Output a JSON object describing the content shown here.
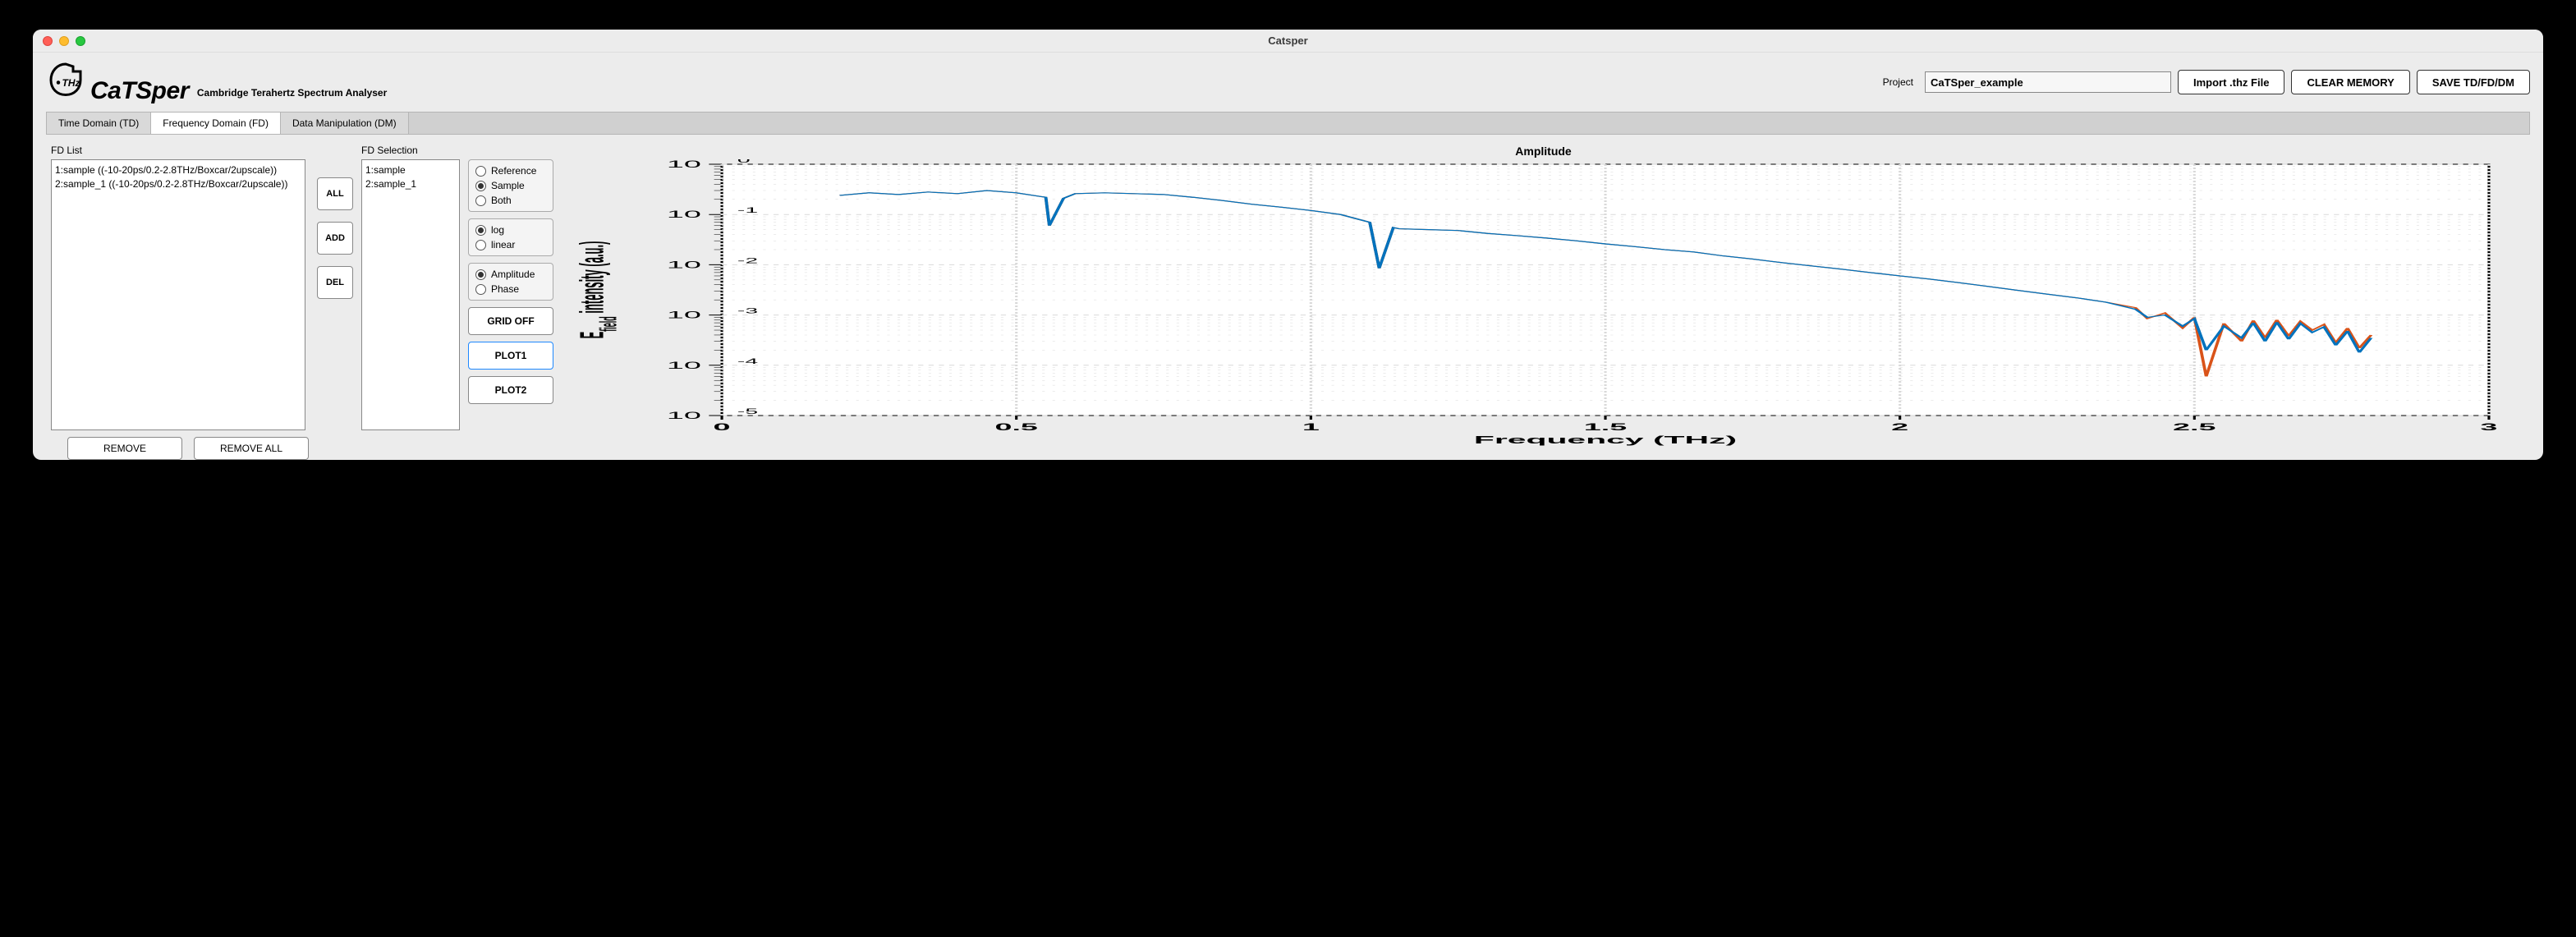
{
  "window": {
    "title": "Catsper"
  },
  "header": {
    "app_name": "CaTSper",
    "subtitle": "Cambridge Terahertz Spectrum Analyser",
    "project_label": "Project",
    "project_value": "CaTSper_example",
    "import_btn": "Import .thz File",
    "clear_btn": "CLEAR MEMORY",
    "save_btn": "SAVE TD/FD/DM"
  },
  "tabs": {
    "items": [
      "Time Domain (TD)",
      "Frequency Domain (FD)",
      "Data Manipulation (DM)"
    ],
    "active_index": 1
  },
  "fd_list": {
    "label": "FD List",
    "items": [
      "1:sample ((-10-20ps/0.2-2.8THz/Boxcar/2upscale))",
      "2:sample_1 ((-10-20ps/0.2-2.8THz/Boxcar/2upscale))"
    ]
  },
  "mini_btns": {
    "all": "ALL",
    "add": "ADD",
    "del": "DEL"
  },
  "fd_sel": {
    "label": "FD Selection",
    "items": [
      "1:sample",
      "2:sample_1"
    ]
  },
  "radios": {
    "source": {
      "options": [
        "Reference",
        "Sample",
        "Both"
      ],
      "selected": 1
    },
    "scale": {
      "options": [
        "log",
        "linear"
      ],
      "selected": 0
    },
    "value": {
      "options": [
        "Amplitude",
        "Phase"
      ],
      "selected": 0
    }
  },
  "ctrl_btns": {
    "grid": "GRID OFF",
    "plot1": "PLOT1",
    "plot2": "PLOT2",
    "active": "plot1"
  },
  "bottom": {
    "remove": "REMOVE",
    "remove_all": "REMOVE ALL"
  },
  "chart": {
    "title": "Amplitude",
    "xlabel": "Frequency (THz)",
    "ylabel": "E_field intensity (a.u.)",
    "xlim": [
      0,
      3
    ],
    "xtick_step": 0.5,
    "ylim_exp": [
      -5,
      0
    ],
    "background_color": "#ffffff",
    "grid_color": "#d9d9d9",
    "axis_color": "#000000",
    "tick_fontsize": 12,
    "label_fontsize": 13,
    "title_fontsize": 14,
    "series": [
      {
        "name": "sample",
        "color": "#d95319",
        "width": 1.2,
        "x": [
          0.2,
          0.25,
          0.3,
          0.35,
          0.4,
          0.45,
          0.5,
          0.55,
          0.556,
          0.58,
          0.6,
          0.65,
          0.7,
          0.75,
          0.8,
          0.85,
          0.9,
          0.95,
          1.0,
          1.05,
          1.1,
          1.116,
          1.14,
          1.15,
          1.2,
          1.25,
          1.3,
          1.35,
          1.4,
          1.45,
          1.5,
          1.55,
          1.6,
          1.65,
          1.7,
          1.75,
          1.8,
          1.85,
          1.9,
          1.95,
          2.0,
          2.05,
          2.1,
          2.15,
          2.2,
          2.25,
          2.3,
          2.35,
          2.4,
          2.42,
          2.45,
          2.48,
          2.5,
          2.52,
          2.55,
          2.58,
          2.6,
          2.62,
          2.64,
          2.66,
          2.68,
          2.7,
          2.72,
          2.74,
          2.76,
          2.78,
          2.8
        ],
        "y": [
          0.24,
          0.27,
          0.25,
          0.28,
          0.26,
          0.3,
          0.27,
          0.22,
          0.06,
          0.21,
          0.26,
          0.27,
          0.26,
          0.25,
          0.22,
          0.19,
          0.16,
          0.14,
          0.12,
          0.1,
          0.07,
          0.0085,
          0.055,
          0.052,
          0.05,
          0.048,
          0.042,
          0.038,
          0.034,
          0.03,
          0.026,
          0.023,
          0.02,
          0.018,
          0.015,
          0.013,
          0.011,
          0.0095,
          0.0082,
          0.007,
          0.006,
          0.0052,
          0.0044,
          0.0037,
          0.0031,
          0.0026,
          0.0022,
          0.0018,
          0.0014,
          0.00085,
          0.0011,
          0.00055,
          0.0009,
          6e-05,
          0.00068,
          0.0003,
          0.00078,
          0.00035,
          0.0008,
          0.00038,
          0.00075,
          0.0005,
          0.00065,
          0.00028,
          0.00055,
          0.00022,
          0.0004
        ]
      },
      {
        "name": "sample_1",
        "color": "#0072bd",
        "width": 1.2,
        "x": [
          0.2,
          0.25,
          0.3,
          0.35,
          0.4,
          0.45,
          0.5,
          0.55,
          0.556,
          0.58,
          0.6,
          0.65,
          0.7,
          0.75,
          0.8,
          0.85,
          0.9,
          0.95,
          1.0,
          1.05,
          1.1,
          1.116,
          1.14,
          1.15,
          1.2,
          1.25,
          1.3,
          1.35,
          1.4,
          1.45,
          1.5,
          1.55,
          1.6,
          1.65,
          1.7,
          1.75,
          1.8,
          1.85,
          1.9,
          1.95,
          2.0,
          2.05,
          2.1,
          2.15,
          2.2,
          2.25,
          2.3,
          2.35,
          2.4,
          2.42,
          2.45,
          2.48,
          2.5,
          2.52,
          2.55,
          2.58,
          2.6,
          2.62,
          2.64,
          2.66,
          2.68,
          2.7,
          2.72,
          2.74,
          2.76,
          2.78,
          2.8
        ],
        "y": [
          0.24,
          0.27,
          0.25,
          0.28,
          0.26,
          0.3,
          0.27,
          0.22,
          0.06,
          0.21,
          0.26,
          0.27,
          0.26,
          0.25,
          0.22,
          0.19,
          0.16,
          0.14,
          0.12,
          0.1,
          0.07,
          0.0085,
          0.055,
          0.052,
          0.05,
          0.048,
          0.042,
          0.038,
          0.034,
          0.03,
          0.026,
          0.023,
          0.02,
          0.018,
          0.015,
          0.013,
          0.011,
          0.0095,
          0.0082,
          0.007,
          0.006,
          0.0052,
          0.0044,
          0.0037,
          0.0031,
          0.0026,
          0.0022,
          0.0018,
          0.0013,
          0.0009,
          0.001,
          0.0006,
          0.00085,
          0.0002,
          0.0006,
          0.00035,
          0.0007,
          0.0003,
          0.00072,
          0.00033,
          0.00068,
          0.00045,
          0.00058,
          0.00025,
          0.00048,
          0.00018,
          0.00035
        ]
      }
    ]
  }
}
